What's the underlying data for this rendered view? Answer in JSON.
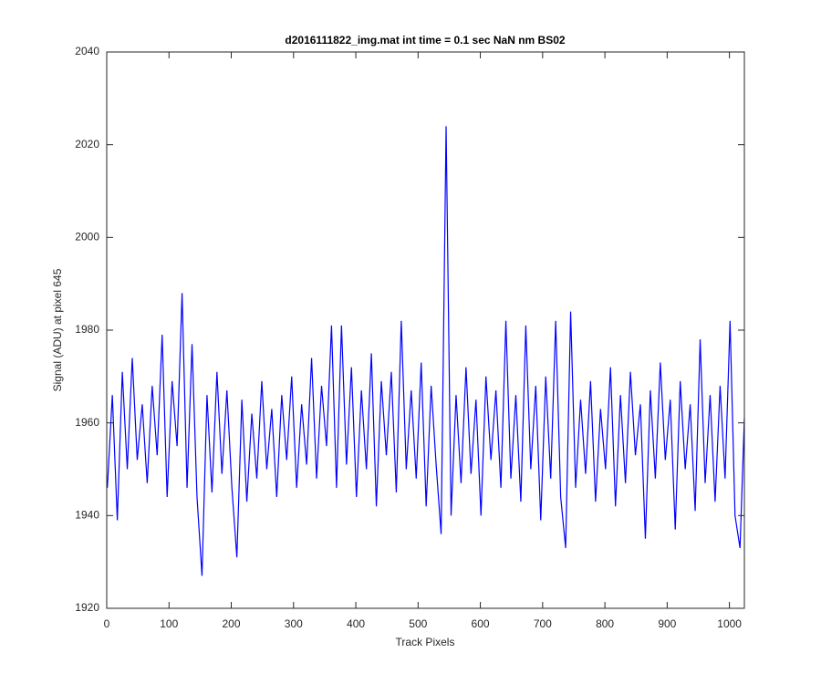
{
  "chart_data": {
    "type": "line",
    "title": "d2016111822_img.mat int time = 0.1 sec  NaN nm BS02",
    "x_label": "Track Pixels",
    "y_label": "Signal (ADU) at pixel 645",
    "xlim": [
      0,
      1024
    ],
    "ylim": [
      1920,
      2040
    ],
    "xticks": [
      0,
      100,
      200,
      300,
      400,
      500,
      600,
      700,
      800,
      900,
      1000
    ],
    "yticks": [
      1920,
      1940,
      1960,
      1980,
      2000,
      2020,
      2040
    ],
    "x": [
      1,
      9,
      17,
      25,
      33,
      41,
      49,
      57,
      65,
      73,
      81,
      89,
      97,
      105,
      113,
      121,
      129,
      137,
      145,
      153,
      161,
      169,
      177,
      185,
      193,
      201,
      209,
      217,
      225,
      233,
      241,
      249,
      257,
      265,
      273,
      281,
      289,
      297,
      305,
      313,
      321,
      329,
      337,
      345,
      353,
      361,
      369,
      377,
      385,
      393,
      401,
      409,
      417,
      425,
      433,
      441,
      449,
      457,
      465,
      473,
      481,
      489,
      497,
      505,
      513,
      521,
      529,
      537,
      545,
      553,
      561,
      569,
      577,
      585,
      593,
      601,
      609,
      617,
      625,
      633,
      641,
      649,
      657,
      665,
      673,
      681,
      689,
      697,
      705,
      713,
      721,
      729,
      737,
      745,
      753,
      761,
      769,
      777,
      785,
      793,
      801,
      809,
      817,
      825,
      833,
      841,
      849,
      857,
      865,
      873,
      881,
      889,
      897,
      905,
      913,
      921,
      929,
      937,
      945,
      953,
      961,
      969,
      977,
      985,
      993,
      1001,
      1009,
      1017,
      1024
    ],
    "series": [
      {
        "color": "#0000ff",
        "values": [
          1946,
          1966,
          1939,
          1971,
          1950,
          1974,
          1952,
          1964,
          1947,
          1968,
          1953,
          1979,
          1944,
          1969,
          1955,
          1988,
          1946,
          1977,
          1944,
          1927,
          1966,
          1945,
          1971,
          1949,
          1967,
          1946,
          1931,
          1965,
          1943,
          1962,
          1948,
          1969,
          1950,
          1963,
          1944,
          1966,
          1952,
          1970,
          1946,
          1964,
          1951,
          1974,
          1948,
          1968,
          1955,
          1981,
          1946,
          1981,
          1951,
          1972,
          1944,
          1967,
          1950,
          1975,
          1942,
          1969,
          1953,
          1971,
          1945,
          1982,
          1950,
          1967,
          1948,
          1973,
          1942,
          1968,
          1951,
          1936,
          2024,
          1940,
          1966,
          1947,
          1972,
          1949,
          1965,
          1940,
          1970,
          1952,
          1967,
          1946,
          1982,
          1948,
          1966,
          1943,
          1981,
          1950,
          1968,
          1939,
          1970,
          1948,
          1982,
          1944,
          1933,
          1984,
          1946,
          1965,
          1949,
          1969,
          1943,
          1963,
          1950,
          1972,
          1942,
          1966,
          1947,
          1971,
          1953,
          1964,
          1935,
          1967,
          1948,
          1973,
          1952,
          1965,
          1937,
          1969,
          1950,
          1964,
          1941,
          1978,
          1947,
          1966,
          1943,
          1968,
          1948,
          1982,
          1940,
          1933,
          1961
        ]
      }
    ]
  }
}
